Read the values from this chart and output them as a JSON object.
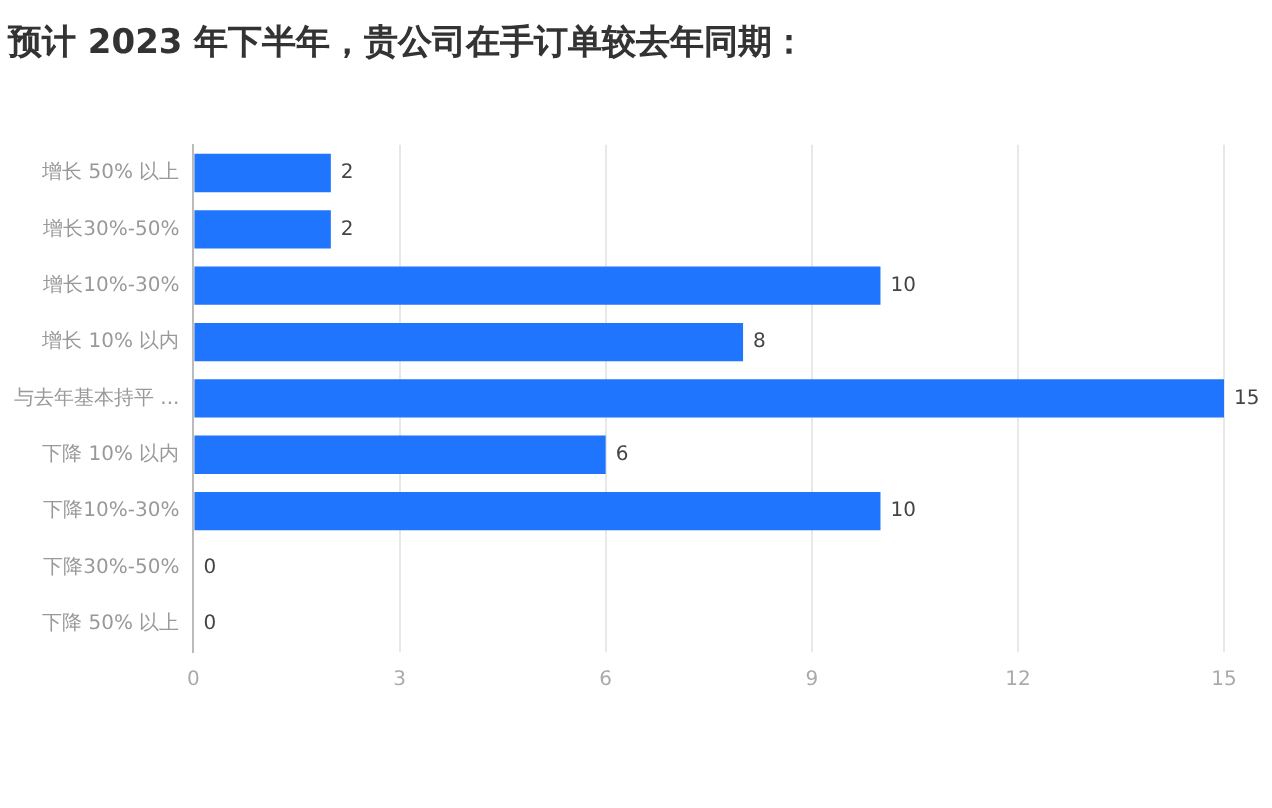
{
  "chart_data": {
    "type": "bar",
    "orientation": "horizontal",
    "title": "预计 2023 年下半年，贵公司在手订单较去年同期：",
    "categories": [
      "增长 50% 以上",
      "增长30%-50%",
      "增长10%-30%",
      "增长 10% 以内",
      "与去年基本持平 ...",
      "下降 10% 以内",
      "下降10%-30%",
      "下降30%-50%",
      "下降 50% 以上"
    ],
    "values": [
      2,
      2,
      10,
      8,
      15,
      6,
      10,
      0,
      0
    ],
    "color": "#1f75fe",
    "xlim": [
      0,
      15
    ],
    "xticks": [
      0,
      3,
      6,
      9,
      12,
      15
    ],
    "grid": "x",
    "data_labels": true,
    "legend": false
  }
}
